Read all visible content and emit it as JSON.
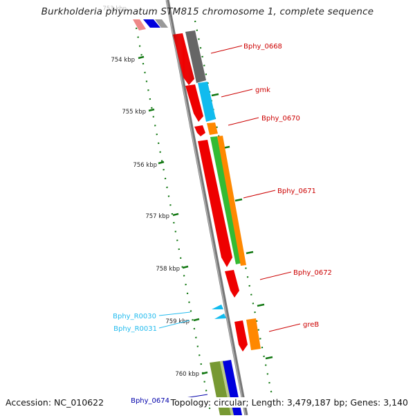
{
  "title": "Burkholderia phymatum STM815 chromosome 1, complete sequence",
  "footer": {
    "accession": "Accession: NC_010622",
    "summary": "Topology: circular; Length: 3,479,187 bp; Genes: 3,140"
  },
  "scale_labels": [
    "753 kbp",
    "754 kbp",
    "755 kbp",
    "756 kbp",
    "757 kbp",
    "758 kbp",
    "759 kbp",
    "760 kbp"
  ],
  "gene_labels": [
    {
      "text": "Bphy_0668",
      "color": "#cc0000"
    },
    {
      "text": "gmk",
      "color": "#cc0000"
    },
    {
      "text": "Bphy_0670",
      "color": "#cc0000"
    },
    {
      "text": "Bphy_0671",
      "color": "#cc0000"
    },
    {
      "text": "Bphy_0672",
      "color": "#cc0000"
    },
    {
      "text": "greB",
      "color": "#cc0000"
    },
    {
      "text": "Bphy_R0030",
      "color": "#22bbee"
    },
    {
      "text": "Bphy_R0031",
      "color": "#22bbee"
    },
    {
      "text": "Bphy_0674",
      "color": "#0000aa"
    }
  ],
  "colors": {
    "backbone": "#888888",
    "ticks": "#117711",
    "cds_red": "#ee0000",
    "cds_gray": "#666666",
    "cds_cyan": "#11bbee",
    "cds_orange": "#ff8800",
    "cds_green": "#33bb33",
    "cds_olive": "#779933",
    "cds_blue": "#0000dd",
    "cds_pink": "#ee8888"
  }
}
